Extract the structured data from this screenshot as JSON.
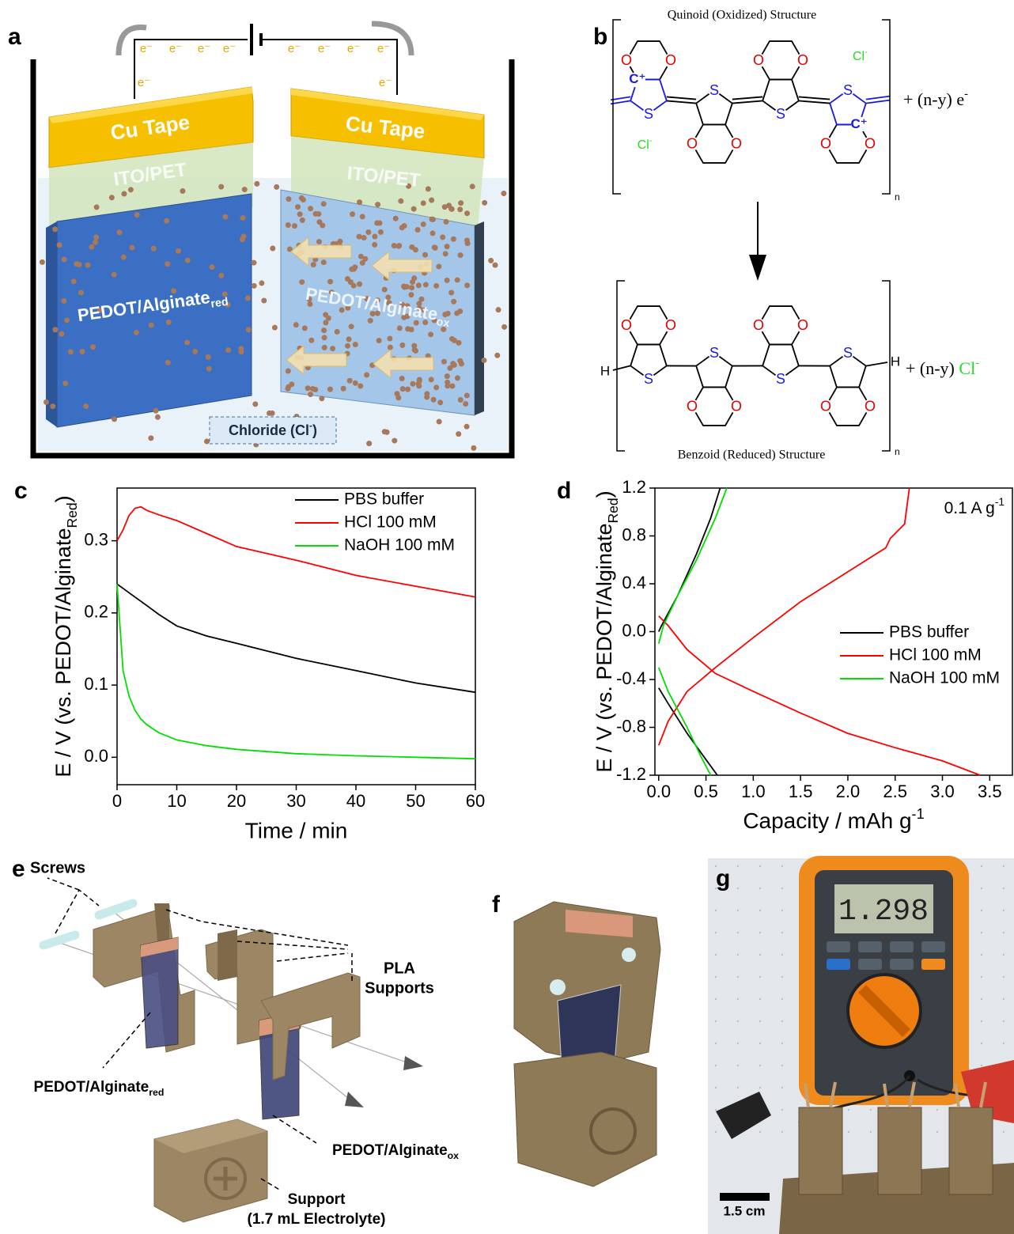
{
  "panels": {
    "a": {
      "label": "a",
      "electrons": [
        "e⁻",
        "e⁻",
        "e⁻",
        "e⁻",
        "e⁻",
        "e⁻",
        "e⁻",
        "e⁻",
        "e⁻",
        "e⁻"
      ],
      "cu_tape": "Cu Tape",
      "ito": "ITO/PET",
      "electrode_red": {
        "text": "PEDOT/Alginate",
        "sub": "red"
      },
      "electrode_ox": {
        "text": "PEDOT/Alginate",
        "sub": "ox"
      },
      "chloride": {
        "text": "Chloride (Cl",
        "sup": "-",
        "tail": ")"
      }
    },
    "b": {
      "label": "b",
      "top_title": "Quinoid (Oxidized) Structure",
      "bottom_title": "Benzoid (Reduced) Structure",
      "electron_product": {
        "text": "+ (n-y) e",
        "sup": "-"
      },
      "chloride_product": {
        "text": "+ (n-y) ",
        "green": "Cl",
        "sup": "-"
      },
      "counter_ion": {
        "text": "Cl",
        "sup": "-"
      },
      "repeat": "n",
      "oxygen": "O",
      "sulfur": "S",
      "carbocation": "C⁺",
      "hydrogen": "H"
    },
    "c": {
      "label": "c"
    },
    "d": {
      "label": "d"
    },
    "e": {
      "label": "e",
      "screws": "Screws",
      "pla": [
        "PLA",
        "Supports"
      ],
      "electrode_red": {
        "text": "PEDOT/Alginate",
        "sub": "red"
      },
      "electrode_ox": {
        "text": "PEDOT/Alginate",
        "sub": "ox"
      },
      "support": [
        "Support",
        "(1.7 mL Electrolyte)"
      ]
    },
    "f": {
      "label": "f"
    },
    "g": {
      "label": "g",
      "display": "1.298",
      "scale_bar": "1.5 cm"
    }
  },
  "chart_data": [
    {
      "type": "line",
      "x_label": "Time / min",
      "y_label": {
        "text": "E / V (vs. PEDOT/Alginate",
        "sub": "Red",
        "tail": ")"
      },
      "x": [
        0,
        1,
        2,
        3,
        4,
        5,
        7,
        10,
        15,
        20,
        30,
        40,
        50,
        60
      ],
      "series": [
        {
          "name": "PBS buffer",
          "color": "#000000",
          "values": [
            0.24,
            0.234,
            0.228,
            0.222,
            0.216,
            0.21,
            0.198,
            0.182,
            0.168,
            0.158,
            0.137,
            0.12,
            0.103,
            0.09
          ]
        },
        {
          "name": "HCl 100 mM",
          "color": "#ff0000",
          "values": [
            0.3,
            0.315,
            0.335,
            0.345,
            0.347,
            0.342,
            0.336,
            0.328,
            0.31,
            0.292,
            0.273,
            0.252,
            0.237,
            0.222
          ]
        },
        {
          "name": "NaOH 100 mM",
          "color": "#00e000",
          "values": [
            0.24,
            0.12,
            0.085,
            0.065,
            0.053,
            0.045,
            0.034,
            0.024,
            0.016,
            0.011,
            0.005,
            0.002,
            0.0,
            -0.002
          ]
        }
      ],
      "xlim": [
        0,
        60
      ],
      "xticks": [
        0,
        10,
        20,
        30,
        40,
        50,
        60
      ],
      "ylim": [
        -0.038,
        0.373
      ],
      "yticks": [
        {
          "value": 0,
          "label": "0.0"
        },
        0.1,
        0.2,
        0.3
      ],
      "legend": "upper right"
    },
    {
      "type": "line",
      "x_label": {
        "text": "Capacity / mAh g",
        "sup": "-1"
      },
      "y_label": {
        "text": "E / V (vs. PEDOT/Alginate",
        "sub": "Red",
        "tail": ")"
      },
      "annotation": {
        "text": "0.1 A g",
        "sup": "-1"
      },
      "series": [
        {
          "name": "PBS buffer",
          "color": "#000000",
          "x": [
            0.62,
            0.5,
            0.3,
            0.1,
            0,
            null,
            0,
            0.03,
            0.2,
            0.4,
            0.55,
            0.65
          ],
          "values": [
            -1.2,
            -1.07,
            -0.85,
            -0.6,
            -0.47,
            null,
            0.0,
            0.05,
            0.3,
            0.65,
            0.95,
            1.2
          ]
        },
        {
          "name": "HCl 100 mM",
          "color": "#ff0000",
          "x": [
            0,
            0.1,
            0.3,
            0.6,
            1.0,
            1.5,
            2.0,
            2.4,
            2.45,
            2.6,
            2.65,
            null,
            0,
            0.1,
            0.3,
            0.6,
            1.0,
            1.5,
            2.0,
            2.5,
            3.0,
            3.4
          ],
          "values": [
            -0.95,
            -0.75,
            -0.5,
            -0.3,
            -0.05,
            0.25,
            0.5,
            0.7,
            0.78,
            0.9,
            1.2,
            null,
            0.13,
            0.05,
            -0.15,
            -0.35,
            -0.5,
            -0.68,
            -0.85,
            -0.97,
            -1.08,
            -1.2
          ]
        },
        {
          "name": "NaOH 100 mM",
          "color": "#00e000",
          "x": [
            0.55,
            0.45,
            0.3,
            0.1,
            0,
            null,
            0,
            0.05,
            0.2,
            0.4,
            0.6,
            0.72
          ],
          "values": [
            -1.2,
            -1.05,
            -0.8,
            -0.5,
            -0.3,
            null,
            -0.1,
            0.05,
            0.3,
            0.6,
            0.95,
            1.2
          ]
        }
      ],
      "xlim": [
        -0.04,
        3.74
      ],
      "xticks": [
        {
          "value": 0,
          "label": "0.0"
        },
        0.5,
        {
          "value": 1,
          "label": "1.0"
        },
        1.5,
        {
          "value": 2,
          "label": "2.0"
        },
        2.5,
        {
          "value": 3,
          "label": "3.0"
        },
        3.5
      ],
      "ylim": [
        -1.2,
        1.2
      ],
      "yticks": [
        -1.2,
        -0.8,
        -0.4,
        {
          "value": 0,
          "label": "0.0"
        },
        0.4,
        0.8,
        1.2
      ],
      "legend": "center right"
    }
  ]
}
